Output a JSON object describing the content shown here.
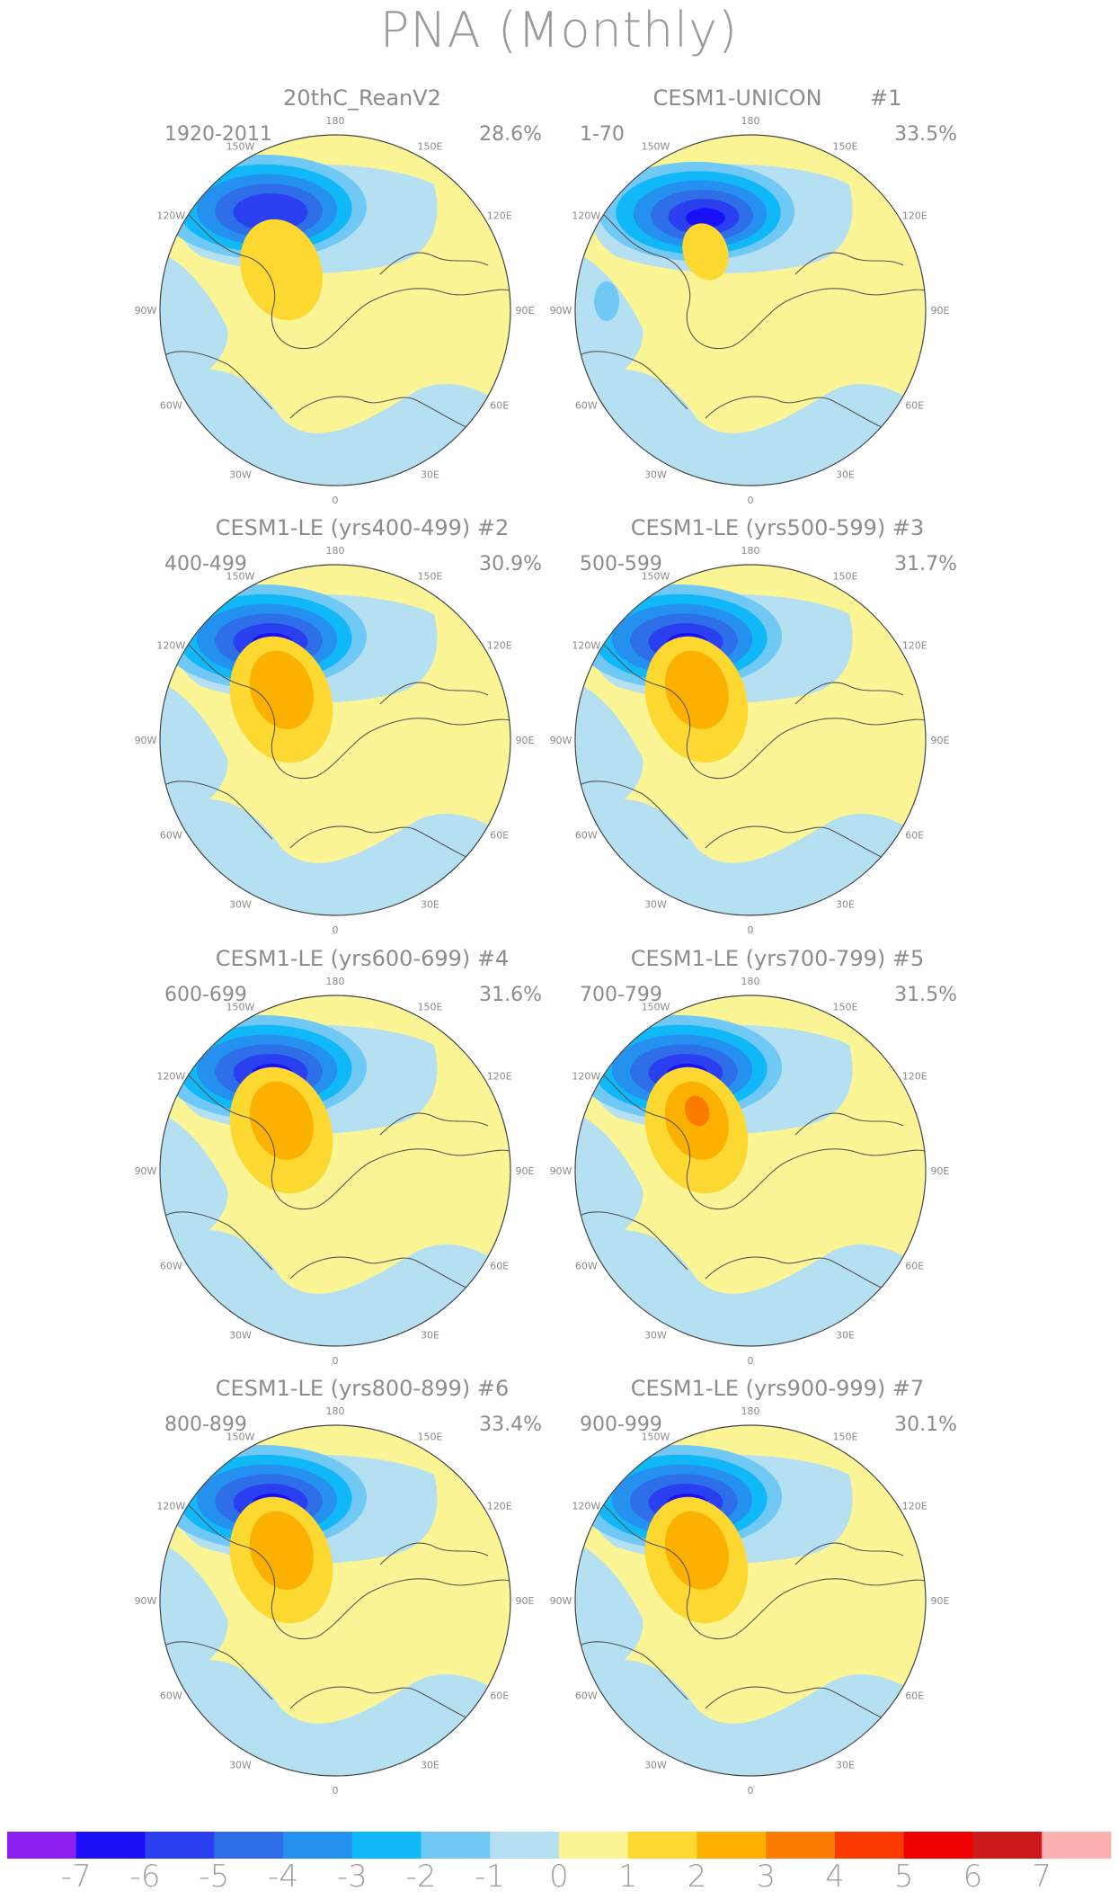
{
  "figure_title": "PNA (Monthly)",
  "panels": [
    {
      "title": "20thC_ReanV2",
      "tag": "",
      "period": "1920-2011",
      "variance": "28.6%",
      "variant": 0
    },
    {
      "title": "CESM1-UNICON",
      "tag": "#1",
      "period": "1-70",
      "variance": "33.5%",
      "variant": 1
    },
    {
      "title": "CESM1-LE (yrs400-499)",
      "tag": "#2",
      "period": "400-499",
      "variance": "30.9%",
      "variant": 2
    },
    {
      "title": "CESM1-LE (yrs500-599)",
      "tag": "#3",
      "period": "500-599",
      "variance": "31.7%",
      "variant": 2
    },
    {
      "title": "CESM1-LE (yrs600-699)",
      "tag": "#4",
      "period": "600-699",
      "variance": "31.6%",
      "variant": 3
    },
    {
      "title": "CESM1-LE (yrs700-799)",
      "tag": "#5",
      "period": "700-799",
      "variance": "31.5%",
      "variant": 4
    },
    {
      "title": "CESM1-LE (yrs800-899)",
      "tag": "#6",
      "period": "800-899",
      "variance": "33.4%",
      "variant": 3
    },
    {
      "title": "CESM1-LE (yrs900-999)",
      "tag": "#7",
      "period": "900-999",
      "variance": "30.1%",
      "variant": 2
    }
  ],
  "longitude_labels": [
    "180",
    "150E",
    "120E",
    "90E",
    "60E",
    "30E",
    "0",
    "30W",
    "60W",
    "90W",
    "120W",
    "150W"
  ],
  "colorbar": {
    "colors": [
      "#8a1ff0",
      "#1a10f5",
      "#2a3ff0",
      "#2e6ee8",
      "#2490f0",
      "#10b8f8",
      "#70c8f4",
      "#b4e0f2",
      "#fbf596",
      "#fcd830",
      "#fcb000",
      "#fb7a00",
      "#fb3a00",
      "#ee0000",
      "#cc1a1a",
      "#fab0b0"
    ],
    "labels": [
      "-7",
      "-6",
      "-5",
      "-4",
      "-3",
      "-2",
      "-1",
      "0",
      "1",
      "2",
      "3",
      "4",
      "5",
      "6",
      "7"
    ]
  },
  "palette": {
    "ocean_blue": "#b4e0f2",
    "yellow": "#fbf596",
    "orange1": "#fcd830",
    "orange2": "#fcb000",
    "orange3": "#fb7a00",
    "blue1": "#70c8f4",
    "blue2": "#10b8f8",
    "blue3": "#2490f0",
    "blue4": "#2e6ee8",
    "blue5": "#2a3ff0",
    "blue6": "#1a10f5",
    "coast": "#555555"
  }
}
